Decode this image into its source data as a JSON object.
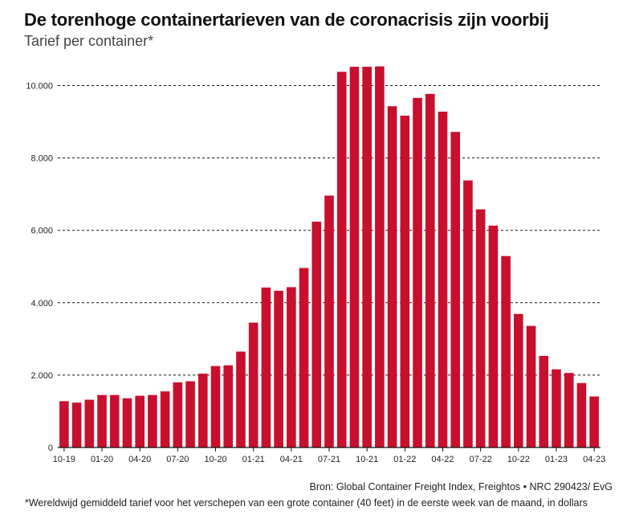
{
  "colors": {
    "bar": "#c8102e",
    "grid": "#111111",
    "axis": "#111111"
  },
  "chart_data": {
    "type": "bar",
    "title": "De torenhoge containertarieven van de coronacrisis zijn voorbij",
    "subtitle": "Tarief per container*",
    "xlabel": "",
    "ylabel": "",
    "ylim": [
      0,
      10500
    ],
    "yticks": [
      0,
      2000,
      4000,
      6000,
      8000,
      10000
    ],
    "ytick_labels": [
      "0",
      "2.000",
      "4.000",
      "6.000",
      "8.000",
      "10.000"
    ],
    "grid": "horizontal dashed",
    "categories": [
      "10-19",
      "11-19",
      "12-19",
      "01-20",
      "02-20",
      "03-20",
      "04-20",
      "05-20",
      "06-20",
      "07-20",
      "08-20",
      "09-20",
      "10-20",
      "11-20",
      "12-20",
      "01-21",
      "02-21",
      "03-21",
      "04-21",
      "05-21",
      "06-21",
      "07-21",
      "08-21",
      "09-21",
      "10-21",
      "11-21",
      "12-21",
      "01-22",
      "02-22",
      "03-22",
      "04-22",
      "05-22",
      "06-22",
      "07-22",
      "08-22",
      "09-22",
      "10-22",
      "11-22",
      "12-22",
      "01-23",
      "02-23",
      "03-23",
      "04-23"
    ],
    "values": [
      1280,
      1240,
      1320,
      1450,
      1450,
      1360,
      1430,
      1450,
      1550,
      1800,
      1830,
      2040,
      2250,
      2270,
      2650,
      3450,
      4420,
      4330,
      4430,
      4960,
      6240,
      6960,
      10380,
      10520,
      10520,
      10530,
      9430,
      9170,
      9660,
      9770,
      9280,
      8720,
      7380,
      6580,
      6130,
      5290,
      3690,
      3360,
      2530,
      2160,
      2060,
      1780,
      1410
    ],
    "x_tick_labels": [
      {
        "index": 0,
        "label": "10-19"
      },
      {
        "index": 3,
        "label": "01-20"
      },
      {
        "index": 6,
        "label": "04-20"
      },
      {
        "index": 9,
        "label": "07-20"
      },
      {
        "index": 12,
        "label": "10-20"
      },
      {
        "index": 15,
        "label": "01-21"
      },
      {
        "index": 18,
        "label": "04-21"
      },
      {
        "index": 21,
        "label": "07-21"
      },
      {
        "index": 24,
        "label": "10-21"
      },
      {
        "index": 27,
        "label": "01-22"
      },
      {
        "index": 30,
        "label": "04-22"
      },
      {
        "index": 33,
        "label": "07-22"
      },
      {
        "index": 36,
        "label": "10-22"
      },
      {
        "index": 39,
        "label": "01-23"
      },
      {
        "index": 42,
        "label": "04-23"
      }
    ]
  },
  "footer": {
    "source": "Bron: Global Container Freight Index, Freightos • NRC 290423/ EvG",
    "note": "*Wereldwijd gemiddeld tarief voor het verschepen van een grote container (40 feet) in de eerste week van de maand, in dollars"
  }
}
